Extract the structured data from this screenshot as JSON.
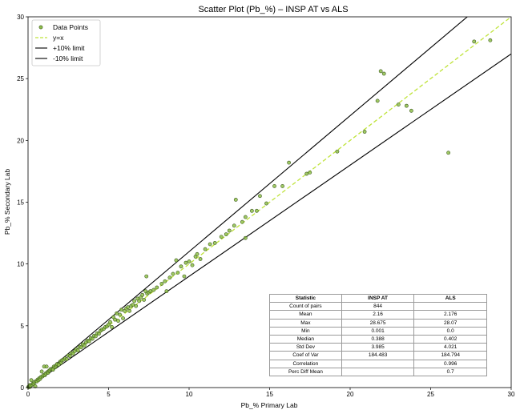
{
  "chart_data": {
    "type": "scatter",
    "title": "Scatter Plot (Pb_%) – INSP AT vs ALS",
    "xlabel": "Pb_% Primary Lab",
    "ylabel": "Pb_% Secondary Lab",
    "xlim": [
      0,
      30
    ],
    "ylim": [
      0,
      30
    ],
    "xticks": [
      0,
      5,
      10,
      15,
      20,
      25,
      30
    ],
    "yticks": [
      0,
      5,
      10,
      15,
      20,
      25,
      30
    ],
    "grid": false,
    "legend_position": "top-left",
    "colors": {
      "points_fill": "#8fbf4a",
      "points_edge": "#3d5a1e",
      "identity": "#bfe33a",
      "limits": "#000000"
    },
    "legend": [
      {
        "label": "Data Points",
        "kind": "marker",
        "color": "#8fbf4a"
      },
      {
        "label": "y=x",
        "kind": "dashed",
        "color": "#bfe33a"
      },
      {
        "label": "+10% limit",
        "kind": "line",
        "color": "#000000"
      },
      {
        "label": "-10% limit",
        "kind": "line",
        "color": "#000000"
      }
    ],
    "lines": [
      {
        "name": "y=x",
        "slope": 1.0
      },
      {
        "name": "+10% limit",
        "slope": 1.1
      },
      {
        "name": "-10% limit",
        "slope": 0.9
      }
    ],
    "points": [
      [
        0.02,
        0.05
      ],
      [
        0.05,
        0.03
      ],
      [
        0.08,
        0.1
      ],
      [
        0.1,
        0.2
      ],
      [
        0.12,
        0.05
      ],
      [
        0.15,
        0.15
      ],
      [
        0.2,
        0.6
      ],
      [
        0.25,
        0.22
      ],
      [
        0.3,
        0.32
      ],
      [
        0.35,
        0.3
      ],
      [
        0.4,
        0.45
      ],
      [
        0.45,
        0.1
      ],
      [
        0.5,
        0.52
      ],
      [
        0.55,
        0.5
      ],
      [
        0.6,
        0.65
      ],
      [
        0.65,
        0.6
      ],
      [
        0.7,
        0.75
      ],
      [
        0.75,
        0.7
      ],
      [
        0.8,
        0.85
      ],
      [
        0.85,
        1.3
      ],
      [
        0.9,
        0.9
      ],
      [
        0.95,
        1.0
      ],
      [
        1.0,
        1.7
      ],
      [
        1.05,
        1.0
      ],
      [
        1.1,
        1.15
      ],
      [
        1.15,
        1.7
      ],
      [
        1.2,
        1.25
      ],
      [
        1.25,
        1.2
      ],
      [
        1.3,
        1.35
      ],
      [
        1.35,
        1.4
      ],
      [
        1.4,
        1.5
      ],
      [
        1.5,
        1.5
      ],
      [
        1.55,
        1.45
      ],
      [
        1.6,
        1.7
      ],
      [
        1.7,
        1.65
      ],
      [
        1.75,
        1.8
      ],
      [
        1.8,
        1.9
      ],
      [
        1.9,
        1.85
      ],
      [
        2.0,
        2.1
      ],
      [
        2.05,
        2.0
      ],
      [
        2.1,
        2.2
      ],
      [
        2.2,
        2.25
      ],
      [
        2.3,
        2.35
      ],
      [
        2.4,
        2.3
      ],
      [
        2.5,
        2.6
      ],
      [
        2.6,
        2.55
      ],
      [
        2.7,
        2.8
      ],
      [
        2.8,
        2.75
      ],
      [
        2.9,
        2.95
      ],
      [
        3.0,
        3.1
      ],
      [
        3.1,
        3.0
      ],
      [
        3.2,
        3.3
      ],
      [
        3.3,
        3.25
      ],
      [
        3.4,
        3.5
      ],
      [
        3.5,
        3.4
      ],
      [
        3.6,
        3.65
      ],
      [
        3.7,
        3.8
      ],
      [
        3.8,
        3.75
      ],
      [
        3.9,
        4.0
      ],
      [
        4.0,
        3.95
      ],
      [
        4.1,
        4.2
      ],
      [
        4.2,
        4.15
      ],
      [
        4.3,
        4.4
      ],
      [
        4.4,
        4.35
      ],
      [
        4.5,
        4.6
      ],
      [
        4.6,
        4.7
      ],
      [
        4.7,
        4.75
      ],
      [
        4.8,
        4.9
      ],
      [
        4.9,
        4.95
      ],
      [
        5.0,
        5.1
      ],
      [
        5.1,
        5.3
      ],
      [
        5.2,
        4.9
      ],
      [
        5.3,
        5.7
      ],
      [
        5.4,
        5.5
      ],
      [
        5.5,
        6.0
      ],
      [
        5.6,
        5.4
      ],
      [
        5.7,
        5.9
      ],
      [
        5.8,
        6.3
      ],
      [
        5.9,
        5.6
      ],
      [
        6.0,
        6.2
      ],
      [
        6.1,
        6.4
      ],
      [
        6.2,
        6.5
      ],
      [
        6.3,
        6.2
      ],
      [
        6.4,
        6.6
      ],
      [
        6.5,
        6.7
      ],
      [
        6.6,
        7.0
      ],
      [
        6.7,
        6.6
      ],
      [
        6.8,
        7.2
      ],
      [
        6.9,
        7.0
      ],
      [
        7.0,
        7.3
      ],
      [
        7.1,
        7.5
      ],
      [
        7.2,
        7.1
      ],
      [
        7.3,
        7.8
      ],
      [
        7.35,
        9.0
      ],
      [
        7.4,
        7.6
      ],
      [
        7.5,
        7.7
      ],
      [
        7.6,
        7.8
      ],
      [
        7.8,
        7.9
      ],
      [
        8.0,
        8.1
      ],
      [
        8.3,
        8.4
      ],
      [
        8.5,
        8.6
      ],
      [
        8.6,
        7.8
      ],
      [
        8.8,
        8.9
      ],
      [
        9.0,
        9.2
      ],
      [
        9.2,
        10.3
      ],
      [
        9.3,
        9.3
      ],
      [
        9.5,
        9.8
      ],
      [
        9.7,
        9.0
      ],
      [
        9.8,
        10.1
      ],
      [
        10.0,
        10.2
      ],
      [
        10.2,
        9.9
      ],
      [
        10.4,
        10.6
      ],
      [
        10.5,
        10.8
      ],
      [
        10.7,
        10.4
      ],
      [
        11.0,
        11.2
      ],
      [
        11.3,
        11.6
      ],
      [
        11.6,
        11.7
      ],
      [
        12.0,
        12.2
      ],
      [
        12.3,
        12.4
      ],
      [
        12.5,
        12.7
      ],
      [
        12.8,
        13.1
      ],
      [
        12.9,
        15.2
      ],
      [
        13.3,
        13.4
      ],
      [
        13.5,
        13.8
      ],
      [
        13.5,
        12.1
      ],
      [
        13.9,
        14.3
      ],
      [
        14.2,
        14.3
      ],
      [
        14.4,
        15.5
      ],
      [
        14.8,
        14.9
      ],
      [
        15.3,
        16.3
      ],
      [
        15.8,
        16.3
      ],
      [
        16.2,
        18.2
      ],
      [
        17.3,
        17.3
      ],
      [
        17.5,
        17.4
      ],
      [
        19.2,
        19.1
      ],
      [
        20.9,
        20.7
      ],
      [
        21.7,
        23.2
      ],
      [
        21.9,
        25.6
      ],
      [
        22.1,
        25.4
      ],
      [
        23.0,
        22.9
      ],
      [
        23.5,
        22.8
      ],
      [
        23.8,
        22.4
      ],
      [
        26.1,
        19.0
      ],
      [
        27.7,
        28.0
      ],
      [
        28.7,
        28.1
      ]
    ],
    "stats_table": {
      "headers": [
        "Statistic",
        "INSP AT",
        "ALS"
      ],
      "rows": [
        [
          "Count of pairs",
          "844",
          ""
        ],
        [
          "Mean",
          "2.16",
          "2.176"
        ],
        [
          "Max",
          "28.675",
          "28.07"
        ],
        [
          "Min",
          "0.001",
          "0.0"
        ],
        [
          "Median",
          "0.388",
          "0.402"
        ],
        [
          "Std Dev",
          "3.985",
          "4.021"
        ],
        [
          "Coef of Var",
          "184.483",
          "184.794"
        ],
        [
          "Correlation",
          "",
          "0.996"
        ],
        [
          "Perc Diff Mean",
          "",
          "0.7"
        ]
      ]
    }
  }
}
